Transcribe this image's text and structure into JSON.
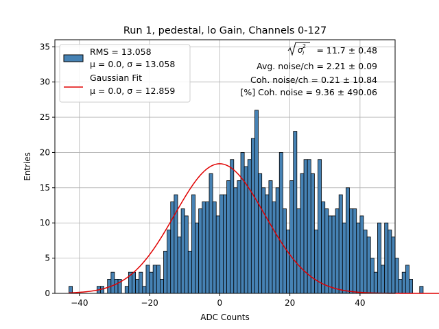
{
  "chart_data": {
    "type": "bar",
    "title": "Run 1, pedestal, lo Gain, Channels 0-127",
    "xlabel": "ADC Counts",
    "ylabel": "Entries",
    "xlim": [
      -47,
      50
    ],
    "ylim": [
      0,
      36
    ],
    "xticks": [
      -40,
      -20,
      0,
      20,
      40
    ],
    "xtick_labels": [
      "−40",
      "−20",
      "0",
      "20",
      "40"
    ],
    "yticks": [
      0,
      5,
      10,
      15,
      20,
      25,
      30,
      35
    ],
    "ytick_labels": [
      "0",
      "5",
      "10",
      "15",
      "20",
      "25",
      "30",
      "35"
    ],
    "grid": true,
    "legend_position": "top-left",
    "bin_start": -43,
    "bin_width": 1,
    "values": [
      1,
      0,
      0,
      0,
      0,
      0,
      0,
      0,
      1,
      1,
      0,
      2,
      3,
      2,
      2,
      0,
      1,
      3,
      3,
      2,
      3,
      1,
      4,
      3,
      4,
      4,
      2,
      6,
      9,
      13,
      14,
      8,
      12,
      11,
      6,
      14,
      10,
      12,
      13,
      13,
      17,
      13,
      11,
      14,
      14,
      16,
      19,
      15,
      16,
      20,
      18,
      19,
      22,
      26,
      17,
      15,
      14,
      16,
      13,
      15,
      20,
      12,
      9,
      16,
      23,
      12,
      17,
      19,
      19,
      17,
      9,
      19,
      13,
      12,
      11,
      11,
      12,
      14,
      10,
      15,
      12,
      12,
      10,
      11,
      9,
      8,
      5,
      3,
      10,
      4,
      10,
      9,
      8,
      5,
      2,
      3,
      4,
      2,
      0,
      0,
      1,
      0,
      0,
      0,
      0,
      0,
      0,
      1,
      0,
      0,
      0,
      0,
      1,
      0,
      0,
      0,
      1
    ],
    "bar_color": "#4682b4",
    "fit": {
      "mu": 0.0,
      "sigma": 12.859,
      "amplitude": 18.4,
      "color": "#e00000"
    },
    "legend": [
      {
        "label": "RMS = 13.058",
        "sublabel": "μ = 0.0, σ = 13.058",
        "kind": "patch"
      },
      {
        "label": "Gaussian Fit",
        "sublabel": "μ = 0.0, σ = 12.859",
        "kind": "line"
      }
    ],
    "annotations": {
      "sigma_i": "= 11.7 ± 0.48",
      "avg_noise": "Avg. noise/ch = 2.21 ± 0.09",
      "coh_noise": "Coh. noise/ch = 0.21 ± 10.84",
      "pct_coh_noise": "[%] Coh. noise = 9.36 ± 490.06"
    }
  }
}
